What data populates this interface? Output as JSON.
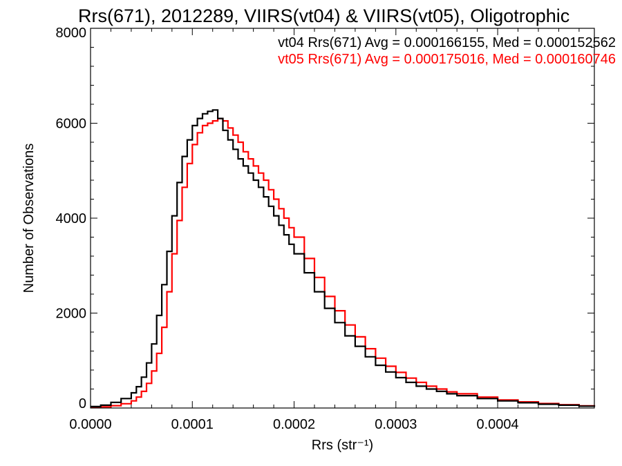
{
  "chart_data": {
    "type": "line",
    "step": true,
    "title": "Rrs(671), 2012289, VIIRS(vt04) & VIIRS(vt05), Oligotrophic",
    "xlabel": "Rrs (str⁻¹)",
    "ylabel": "Number of Observations",
    "xlim": [
      0.0,
      0.000495
    ],
    "ylim": [
      0,
      8000
    ],
    "xticks": [
      0.0,
      0.0001,
      0.0002,
      0.0003,
      0.0004
    ],
    "xtick_labels": [
      "0.0000",
      "0.0001",
      "0.0002",
      "0.0003",
      "0.0004"
    ],
    "yticks": [
      0,
      2000,
      4000,
      6000,
      8000
    ],
    "ytick_labels": [
      "0",
      "2000",
      "4000",
      "6000",
      "8000"
    ],
    "grid": false,
    "legend_position": "top-right",
    "series": [
      {
        "name": "vt04",
        "color": "#000000",
        "annotation": "vt04 Rrs(671) Avg = 0.000166155, Med = 0.000152562",
        "x": [
          0.0,
          1e-05,
          2e-05,
          3e-05,
          4e-05,
          4.5e-05,
          5e-05,
          5.5e-05,
          6e-05,
          6.5e-05,
          7e-05,
          7.5e-05,
          8e-05,
          8.5e-05,
          9e-05,
          9.5e-05,
          0.0001,
          0.000105,
          0.00011,
          0.000115,
          0.00012,
          0.000125,
          0.00013,
          0.000135,
          0.00014,
          0.000145,
          0.00015,
          0.000155,
          0.00016,
          0.000165,
          0.00017,
          0.000175,
          0.00018,
          0.000185,
          0.00019,
          0.000195,
          0.0002,
          0.00021,
          0.00022,
          0.00023,
          0.00024,
          0.00025,
          0.00026,
          0.00027,
          0.00028,
          0.00029,
          0.0003,
          0.00031,
          0.00032,
          0.00033,
          0.00034,
          0.00035,
          0.00036,
          0.00038,
          0.0004,
          0.00042,
          0.00044,
          0.00046,
          0.00048,
          0.000495
        ],
        "values": [
          30,
          60,
          120,
          200,
          320,
          450,
          650,
          950,
          1350,
          1950,
          2600,
          3300,
          4050,
          4750,
          5300,
          5650,
          5950,
          6100,
          6200,
          6250,
          6280,
          6100,
          5850,
          5650,
          5450,
          5250,
          5100,
          4950,
          4800,
          4650,
          4450,
          4250,
          4050,
          3850,
          3650,
          3450,
          3250,
          2850,
          2450,
          2100,
          1800,
          1520,
          1300,
          1080,
          900,
          760,
          640,
          540,
          460,
          400,
          350,
          300,
          260,
          200,
          150,
          110,
          80,
          60,
          40,
          25
        ]
      },
      {
        "name": "vt05",
        "color": "#ff0000",
        "annotation": "vt05 Rrs(671) Avg = 0.000175016, Med = 0.000160746",
        "x": [
          0.0,
          1e-05,
          2e-05,
          3e-05,
          4e-05,
          4.5e-05,
          5e-05,
          5.5e-05,
          6e-05,
          6.5e-05,
          7e-05,
          7.5e-05,
          8e-05,
          8.5e-05,
          9e-05,
          9.5e-05,
          0.0001,
          0.000105,
          0.00011,
          0.000115,
          0.00012,
          0.000125,
          0.00013,
          0.000135,
          0.00014,
          0.000145,
          0.00015,
          0.000155,
          0.00016,
          0.000165,
          0.00017,
          0.000175,
          0.00018,
          0.000185,
          0.00019,
          0.000195,
          0.0002,
          0.00021,
          0.00022,
          0.00023,
          0.00024,
          0.00025,
          0.00026,
          0.00027,
          0.00028,
          0.00029,
          0.0003,
          0.00031,
          0.00032,
          0.00033,
          0.00034,
          0.00035,
          0.00036,
          0.00038,
          0.0004,
          0.00042,
          0.00044,
          0.00046,
          0.00048,
          0.000495
        ],
        "values": [
          10,
          25,
          50,
          90,
          150,
          230,
          350,
          520,
          780,
          1150,
          1700,
          2450,
          3250,
          3950,
          4650,
          5150,
          5550,
          5800,
          5950,
          6000,
          6050,
          6100,
          6050,
          5900,
          5750,
          5600,
          5400,
          5250,
          5100,
          4950,
          4800,
          4600,
          4400,
          4200,
          4000,
          3800,
          3600,
          3150,
          2750,
          2350,
          2050,
          1750,
          1500,
          1250,
          1050,
          880,
          750,
          630,
          540,
          460,
          400,
          340,
          300,
          230,
          170,
          130,
          95,
          70,
          45,
          30
        ]
      }
    ]
  }
}
